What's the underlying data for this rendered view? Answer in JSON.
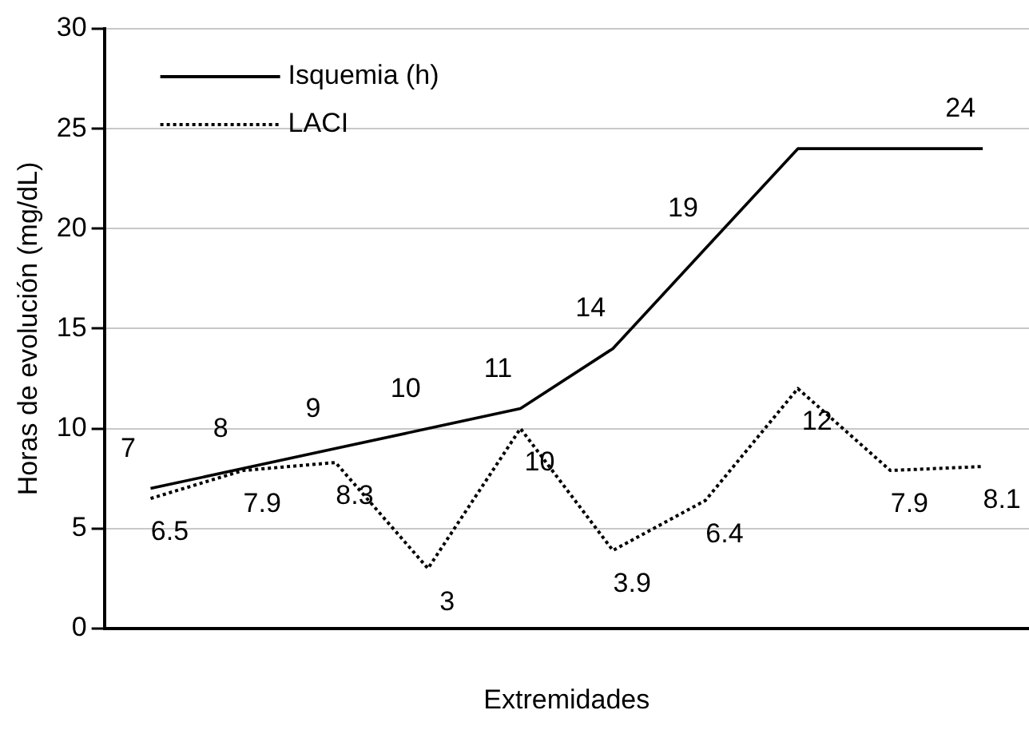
{
  "chart_data": {
    "type": "line",
    "xlabel": "Extremidades",
    "ylabel": "Horas de evolución (mg/dL)",
    "categories": [
      null,
      null,
      null,
      null,
      null,
      null,
      null,
      null,
      null,
      null
    ],
    "series": [
      {
        "name": "Isquemia (h)",
        "color": "#000000",
        "line_style": "solid",
        "values": [
          7,
          8,
          9,
          10,
          11,
          14,
          19,
          24,
          24,
          24
        ],
        "value_labels": [
          "7",
          "8",
          "9",
          "10",
          "11",
          "14",
          "19",
          null,
          null,
          "24"
        ]
      },
      {
        "name": "LACI",
        "color": "#000000",
        "line_style": "dotted",
        "values": [
          6.5,
          7.9,
          8.3,
          3,
          10,
          3.9,
          6.4,
          12,
          7.9,
          8.1
        ],
        "value_labels": [
          "6.5",
          "7.9",
          "8.3",
          "3",
          "10",
          "3.9",
          "6.4",
          "12",
          "7.9",
          "8.1"
        ]
      }
    ],
    "ylim": [
      0,
      30
    ],
    "yticks": [
      0,
      5,
      10,
      15,
      20,
      25,
      30
    ],
    "grid": "y",
    "legend": "top left",
    "marker": "none"
  }
}
